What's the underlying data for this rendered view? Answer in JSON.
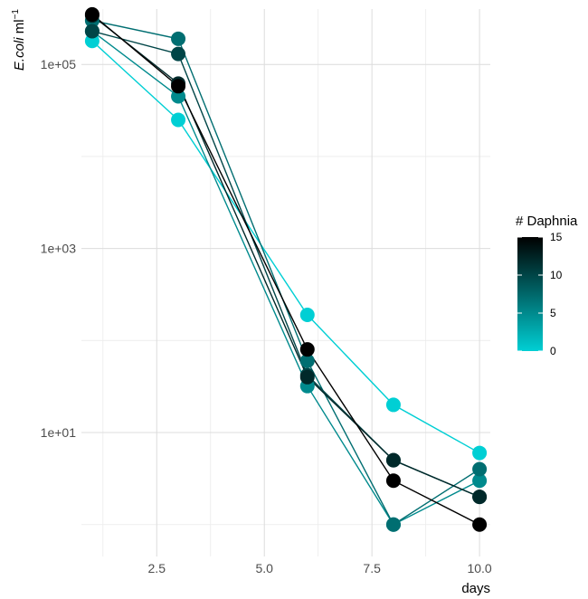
{
  "chart_data": {
    "type": "line",
    "title": "",
    "xlabel": "days",
    "ylabel_main": "E.coli",
    "ylabel_unit": " ml",
    "ylabel_exp": "−1",
    "x_scale": "linear",
    "y_scale": "log10",
    "xlim": [
      0.75,
      10.25
    ],
    "ylim": [
      0.45,
      400000
    ],
    "x_ticks": [
      2.5,
      5.0,
      7.5,
      10.0
    ],
    "x_tick_labels": [
      "2.5",
      "5.0",
      "7.5",
      "10.0"
    ],
    "y_ticks": [
      10,
      1000,
      100000
    ],
    "y_tick_labels": [
      "1e+01",
      "1e+03",
      "1e+05"
    ],
    "grid": true,
    "legend": {
      "title": "# Daphnia",
      "placement": "right",
      "min": 0,
      "max": 15,
      "ticks": [
        0,
        5,
        10,
        15
      ],
      "tick_labels": [
        "0",
        "5",
        "10",
        "15"
      ],
      "color_low": "#00cfd4",
      "color_high": "#000000"
    },
    "series": [
      {
        "daphnia": 0,
        "x": [
          1,
          3,
          6,
          8,
          10
        ],
        "y": [
          180000,
          25000,
          190,
          20,
          6
        ]
      },
      {
        "daphnia": 5,
        "x": [
          1,
          3,
          6,
          8,
          10
        ],
        "y": [
          230000,
          45000,
          32,
          1,
          3
        ]
      },
      {
        "daphnia": 7,
        "x": [
          1,
          3,
          6,
          8,
          10
        ],
        "y": [
          300000,
          190000,
          60,
          1,
          4
        ]
      },
      {
        "daphnia": 10,
        "x": [
          1,
          3,
          6,
          8,
          10
        ],
        "y": [
          230000,
          130000,
          42,
          5,
          2
        ]
      },
      {
        "daphnia": 12,
        "x": [
          1,
          3,
          6,
          8,
          10
        ],
        "y": [
          340000,
          62000,
          40,
          5,
          2
        ]
      },
      {
        "daphnia": 15,
        "x": [
          1,
          3,
          6,
          8,
          10
        ],
        "y": [
          350000,
          58000,
          80,
          3,
          1
        ]
      }
    ]
  }
}
